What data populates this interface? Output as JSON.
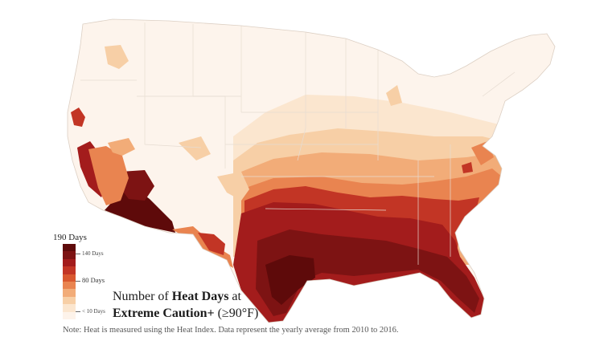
{
  "legend": {
    "top_label": "190 Days",
    "ticks": [
      {
        "label": "140 Days"
      },
      {
        "label": "80 Days"
      },
      {
        "label": "< 10 Days"
      }
    ],
    "colors": [
      "#5e0a0a",
      "#7d1313",
      "#a31c1c",
      "#c23525",
      "#d9582f",
      "#e98450",
      "#f2ac78",
      "#f7cfa6",
      "#fbe6cf",
      "#fdf3ea"
    ]
  },
  "title": {
    "part1": "Number of ",
    "bold1": "Heat Days",
    "part2": " at",
    "bold2": "Extreme Caution+",
    "part3": " (≥90°F)"
  },
  "note": "Note: Heat is measured using the Heat Index. Data represent the yearly average from 2010 to 2016.",
  "colors": {
    "land": "#fdf4ec",
    "border": "#e6dcd2",
    "background": "#ffffff"
  }
}
